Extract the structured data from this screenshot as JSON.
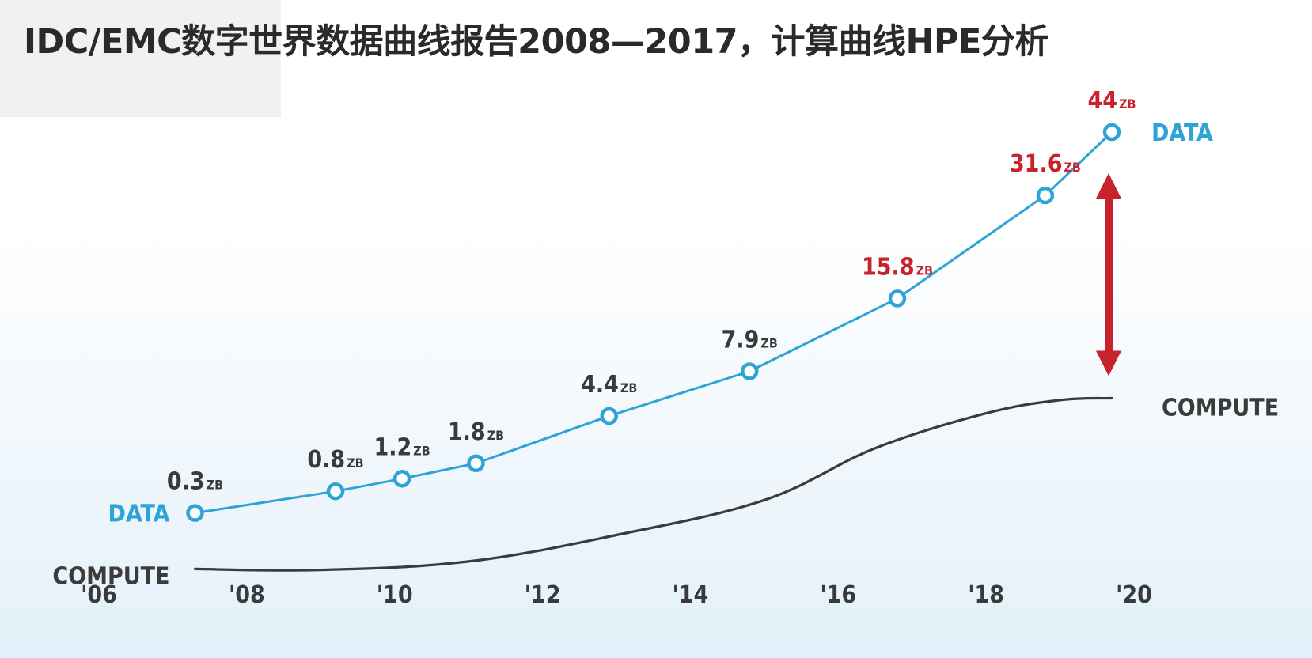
{
  "title": "IDC/EMC数字世界数据曲线报告2008—2017，计算曲线HPE分析",
  "chart_data": {
    "type": "line",
    "title": "IDC/EMC数字世界数据曲线报告2008—2017，计算曲线HPE分析",
    "xlabel": "",
    "ylabel": "",
    "x_ticks": [
      "'06",
      "'08",
      "'10",
      "'12",
      "'14",
      "'16",
      "'18",
      "'20"
    ],
    "grid": false,
    "series": [
      {
        "name": "DATA",
        "color": "#2ea3d6",
        "unit": "ZB",
        "points": [
          {
            "x": 2007.3,
            "y": 0.3,
            "label": "0.3",
            "unit": "ZB",
            "label_color": "#3a3a3a"
          },
          {
            "x": 2009.2,
            "y": 0.8,
            "label": "0.8",
            "unit": "ZB",
            "label_color": "#3a3a3a"
          },
          {
            "x": 2010.1,
            "y": 1.2,
            "label": "1.2",
            "unit": "ZB",
            "label_color": "#3a3a3a"
          },
          {
            "x": 2011.1,
            "y": 1.8,
            "label": "1.8",
            "unit": "ZB",
            "label_color": "#3a3a3a"
          },
          {
            "x": 2012.9,
            "y": 4.4,
            "label": "4.4",
            "unit": "ZB",
            "label_color": "#3a3a3a"
          },
          {
            "x": 2014.8,
            "y": 7.9,
            "label": "7.9",
            "unit": "ZB",
            "label_color": "#3a3a3a"
          },
          {
            "x": 2016.8,
            "y": 15.8,
            "label": "15.8",
            "unit": "ZB",
            "label_color": "#c8232c"
          },
          {
            "x": 2018.8,
            "y": 31.6,
            "label": "31.6",
            "unit": "ZB",
            "label_color": "#c8232c"
          },
          {
            "x": 2019.7,
            "y": 44,
            "label": "44",
            "unit": "ZB",
            "label_color": "#c8232c"
          }
        ]
      },
      {
        "name": "COMPUTE",
        "color": "#3b3b3b",
        "points": [
          {
            "x": 2007.3,
            "y": -2.3
          },
          {
            "x": 2009.0,
            "y": -2.4
          },
          {
            "x": 2011.0,
            "y": -1.5
          },
          {
            "x": 2013.0,
            "y": 1.3
          },
          {
            "x": 2015.0,
            "y": 5.0
          },
          {
            "x": 2016.5,
            "y": 10.5
          },
          {
            "x": 2018.0,
            "y": 14.2
          },
          {
            "x": 2019.0,
            "y": 15.6
          },
          {
            "x": 2019.7,
            "y": 15.8
          }
        ]
      }
    ],
    "series_labels": {
      "data_start": "DATA",
      "compute_start": "COMPUTE",
      "data_end": "DATA",
      "compute_end": "COMPUTE"
    },
    "gap_arrow": {
      "color": "#c8232c",
      "from_series": "COMPUTE",
      "to_series": "DATA"
    }
  }
}
